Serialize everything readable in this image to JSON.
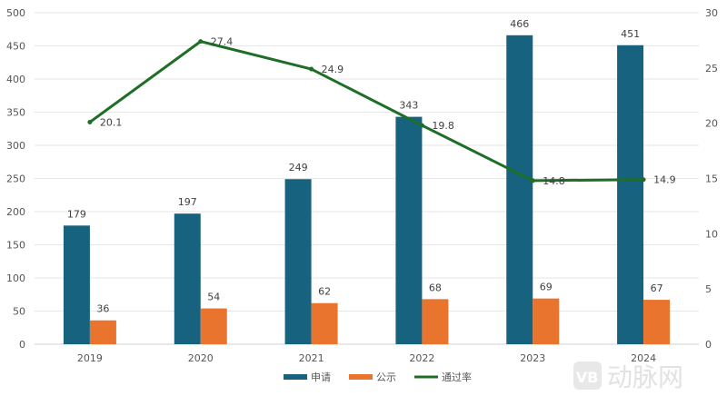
{
  "chart_data": {
    "type": "bar+line",
    "categories": [
      "2019",
      "2020",
      "2021",
      "2022",
      "2023",
      "2024"
    ],
    "series": [
      {
        "name": "申请",
        "type": "bar",
        "axis": "left",
        "color": "#17627f",
        "values": [
          179,
          197,
          249,
          343,
          466,
          451
        ]
      },
      {
        "name": "公示",
        "type": "bar",
        "axis": "left",
        "color": "#e8742e",
        "values": [
          36,
          54,
          62,
          68,
          69,
          67
        ]
      },
      {
        "name": "通过率",
        "type": "line",
        "axis": "right",
        "color": "#1f6e27",
        "values": [
          20.1,
          27.4,
          24.9,
          19.8,
          14.8,
          14.9
        ]
      }
    ],
    "left_axis": {
      "ylim": [
        0,
        500
      ],
      "ticks": [
        0,
        50,
        100,
        150,
        200,
        250,
        300,
        350,
        400,
        450,
        500
      ]
    },
    "right_axis": {
      "ylim": [
        0,
        30
      ],
      "ticks": [
        0,
        5,
        10,
        15,
        20,
        25,
        30
      ]
    },
    "grid": true,
    "legend": "bottom",
    "data_labels": true
  },
  "watermark": "VB 动脉网"
}
